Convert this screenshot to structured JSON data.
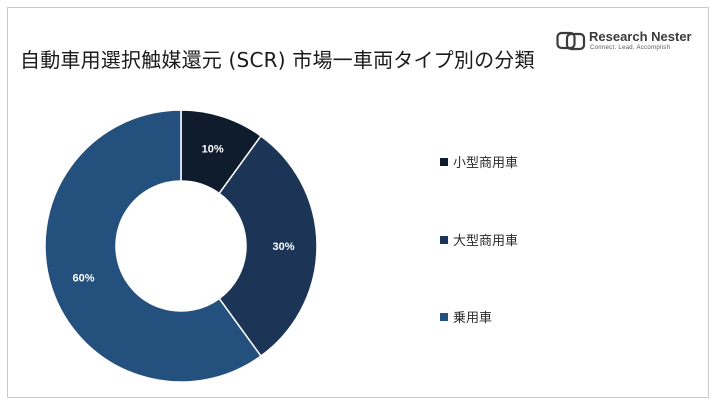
{
  "title": "自動車用選択触媒還元 (SCR) 市場一車両タイプ別の分類",
  "logo": {
    "name": "Research Nester",
    "tagline": "Connect. Lead. Accomplish"
  },
  "colors": {
    "small_commercial": "#0e1c2e",
    "large_commercial": "#1c3557",
    "passenger": "#24507e",
    "label_dark": "#ffffff",
    "label_light": "#ffffff"
  },
  "chart_data": {
    "type": "pie",
    "donut": true,
    "categories": [
      "小型商用車",
      "大型商用車",
      "乗用車"
    ],
    "values": [
      10,
      30,
      60
    ],
    "labels": [
      "10%",
      "30%",
      "60%"
    ],
    "legend_position": "right"
  }
}
